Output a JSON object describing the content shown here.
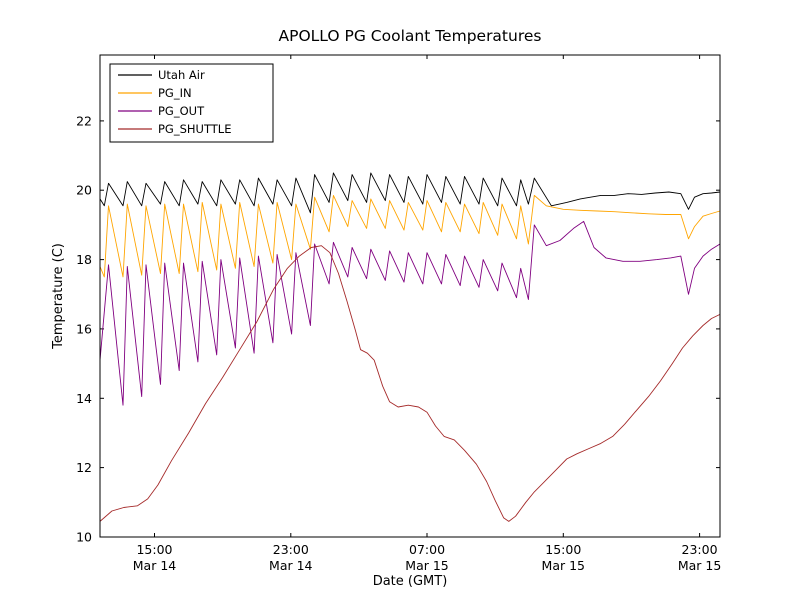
{
  "figure": {
    "background": "#ffffff"
  },
  "chart_data": {
    "type": "line",
    "title": "APOLLO PG Coolant Temperatures",
    "xlabel": "Date (GMT)",
    "ylabel": "Temperature (C)",
    "x_units": "hours since Mar 14 00:00 GMT",
    "xlim": [
      11.8,
      48.2
    ],
    "ylim": [
      10,
      23.9
    ],
    "grid": false,
    "y_ticks": [
      10,
      12,
      14,
      16,
      18,
      20,
      22
    ],
    "x_ticks": [
      {
        "x": 15,
        "time": "15:00",
        "date": "Mar 14"
      },
      {
        "x": 23,
        "time": "23:00",
        "date": "Mar 14"
      },
      {
        "x": 31,
        "time": "07:00",
        "date": "Mar 15"
      },
      {
        "x": 39,
        "time": "15:00",
        "date": "Mar 15"
      },
      {
        "x": 47,
        "time": "23:00",
        "date": "Mar 15"
      }
    ],
    "legend_position": "upper-left",
    "series": [
      {
        "name": "Utah Air",
        "color": "#000000",
        "points": [
          [
            11.8,
            19.75
          ],
          [
            12.05,
            19.55
          ],
          [
            12.3,
            20.2
          ],
          [
            13.15,
            19.55
          ],
          [
            13.4,
            20.25
          ],
          [
            14.25,
            19.55
          ],
          [
            14.5,
            20.2
          ],
          [
            15.35,
            19.6
          ],
          [
            15.6,
            20.25
          ],
          [
            16.45,
            19.55
          ],
          [
            16.7,
            20.3
          ],
          [
            17.55,
            19.6
          ],
          [
            17.8,
            20.25
          ],
          [
            18.65,
            19.55
          ],
          [
            18.9,
            20.3
          ],
          [
            19.75,
            19.6
          ],
          [
            20.0,
            20.3
          ],
          [
            20.85,
            19.55
          ],
          [
            21.1,
            20.35
          ],
          [
            21.95,
            19.6
          ],
          [
            22.2,
            20.3
          ],
          [
            23.05,
            19.55
          ],
          [
            23.3,
            20.35
          ],
          [
            24.15,
            19.35
          ],
          [
            24.4,
            20.45
          ],
          [
            25.25,
            19.65
          ],
          [
            25.5,
            20.5
          ],
          [
            26.35,
            19.7
          ],
          [
            26.6,
            20.45
          ],
          [
            27.45,
            19.65
          ],
          [
            27.7,
            20.5
          ],
          [
            28.55,
            19.7
          ],
          [
            28.8,
            20.45
          ],
          [
            29.65,
            19.65
          ],
          [
            29.9,
            20.4
          ],
          [
            30.75,
            19.6
          ],
          [
            31.0,
            20.45
          ],
          [
            31.85,
            19.65
          ],
          [
            32.1,
            20.4
          ],
          [
            32.95,
            19.6
          ],
          [
            33.2,
            20.4
          ],
          [
            34.05,
            19.6
          ],
          [
            34.3,
            20.35
          ],
          [
            35.15,
            19.55
          ],
          [
            35.4,
            20.35
          ],
          [
            36.25,
            19.55
          ],
          [
            36.5,
            20.3
          ],
          [
            36.95,
            19.6
          ],
          [
            37.3,
            20.35
          ],
          [
            38.3,
            19.55
          ],
          [
            39.2,
            19.65
          ],
          [
            40.0,
            19.75
          ],
          [
            40.6,
            19.8
          ],
          [
            41.2,
            19.85
          ],
          [
            42.0,
            19.85
          ],
          [
            42.8,
            19.9
          ],
          [
            43.6,
            19.88
          ],
          [
            44.4,
            19.92
          ],
          [
            45.2,
            19.95
          ],
          [
            45.9,
            19.9
          ],
          [
            46.35,
            19.45
          ],
          [
            46.7,
            19.8
          ],
          [
            47.2,
            19.9
          ],
          [
            47.7,
            19.92
          ],
          [
            48.2,
            19.95
          ]
        ]
      },
      {
        "name": "PG_IN",
        "color": "#ffa500",
        "points": [
          [
            11.8,
            17.8
          ],
          [
            12.05,
            17.5
          ],
          [
            12.3,
            19.55
          ],
          [
            13.15,
            17.5
          ],
          [
            13.4,
            19.6
          ],
          [
            14.25,
            17.55
          ],
          [
            14.5,
            19.55
          ],
          [
            15.35,
            17.6
          ],
          [
            15.6,
            19.6
          ],
          [
            16.45,
            17.6
          ],
          [
            16.7,
            19.6
          ],
          [
            17.55,
            17.65
          ],
          [
            17.8,
            19.65
          ],
          [
            18.65,
            17.7
          ],
          [
            18.9,
            19.6
          ],
          [
            19.75,
            17.75
          ],
          [
            20.0,
            19.65
          ],
          [
            20.85,
            17.8
          ],
          [
            21.1,
            19.6
          ],
          [
            21.95,
            17.9
          ],
          [
            22.2,
            19.65
          ],
          [
            23.05,
            18.0
          ],
          [
            23.3,
            19.6
          ],
          [
            24.15,
            18.3
          ],
          [
            24.4,
            19.8
          ],
          [
            25.25,
            18.8
          ],
          [
            25.5,
            19.85
          ],
          [
            26.35,
            18.95
          ],
          [
            26.6,
            19.7
          ],
          [
            27.45,
            18.9
          ],
          [
            27.7,
            19.75
          ],
          [
            28.55,
            18.9
          ],
          [
            28.8,
            19.7
          ],
          [
            29.65,
            18.85
          ],
          [
            29.9,
            19.65
          ],
          [
            30.75,
            18.85
          ],
          [
            31.0,
            19.7
          ],
          [
            31.85,
            18.8
          ],
          [
            32.1,
            19.65
          ],
          [
            32.95,
            18.8
          ],
          [
            33.2,
            19.6
          ],
          [
            34.05,
            18.75
          ],
          [
            34.3,
            19.65
          ],
          [
            35.15,
            18.7
          ],
          [
            35.4,
            19.6
          ],
          [
            36.25,
            18.6
          ],
          [
            36.5,
            19.55
          ],
          [
            36.95,
            18.45
          ],
          [
            37.3,
            19.85
          ],
          [
            38.0,
            19.55
          ],
          [
            39.0,
            19.45
          ],
          [
            40.0,
            19.42
          ],
          [
            41.0,
            19.4
          ],
          [
            42.0,
            19.38
          ],
          [
            43.0,
            19.35
          ],
          [
            44.0,
            19.32
          ],
          [
            45.0,
            19.3
          ],
          [
            45.9,
            19.3
          ],
          [
            46.35,
            18.6
          ],
          [
            46.7,
            18.95
          ],
          [
            47.2,
            19.25
          ],
          [
            47.7,
            19.33
          ],
          [
            48.2,
            19.4
          ]
        ]
      },
      {
        "name": "PG_OUT",
        "color": "#800080",
        "points": [
          [
            11.8,
            15.1
          ],
          [
            12.3,
            17.85
          ],
          [
            13.15,
            13.8
          ],
          [
            13.4,
            17.8
          ],
          [
            14.25,
            14.05
          ],
          [
            14.5,
            17.85
          ],
          [
            15.35,
            14.4
          ],
          [
            15.6,
            17.9
          ],
          [
            16.45,
            14.8
          ],
          [
            16.7,
            17.9
          ],
          [
            17.55,
            15.05
          ],
          [
            17.8,
            17.95
          ],
          [
            18.65,
            15.25
          ],
          [
            18.9,
            18.0
          ],
          [
            19.75,
            15.45
          ],
          [
            20.0,
            18.05
          ],
          [
            20.85,
            15.3
          ],
          [
            21.1,
            18.1
          ],
          [
            21.95,
            15.6
          ],
          [
            22.2,
            18.15
          ],
          [
            23.05,
            15.85
          ],
          [
            23.3,
            18.2
          ],
          [
            24.15,
            16.1
          ],
          [
            24.4,
            18.45
          ],
          [
            25.25,
            17.3
          ],
          [
            25.5,
            18.5
          ],
          [
            26.35,
            17.5
          ],
          [
            26.6,
            18.35
          ],
          [
            27.45,
            17.45
          ],
          [
            27.7,
            18.3
          ],
          [
            28.55,
            17.4
          ],
          [
            28.8,
            18.25
          ],
          [
            29.65,
            17.35
          ],
          [
            29.9,
            18.2
          ],
          [
            30.75,
            17.3
          ],
          [
            31.0,
            18.2
          ],
          [
            31.85,
            17.3
          ],
          [
            32.1,
            18.15
          ],
          [
            32.95,
            17.25
          ],
          [
            33.2,
            18.1
          ],
          [
            34.05,
            17.2
          ],
          [
            34.3,
            18.0
          ],
          [
            35.15,
            17.1
          ],
          [
            35.4,
            17.9
          ],
          [
            36.25,
            16.9
          ],
          [
            36.5,
            17.75
          ],
          [
            36.95,
            16.85
          ],
          [
            37.3,
            19.0
          ],
          [
            38.0,
            18.4
          ],
          [
            38.8,
            18.55
          ],
          [
            39.6,
            18.9
          ],
          [
            40.2,
            19.1
          ],
          [
            40.8,
            18.35
          ],
          [
            41.5,
            18.05
          ],
          [
            42.5,
            17.95
          ],
          [
            43.5,
            17.95
          ],
          [
            44.5,
            18.0
          ],
          [
            45.3,
            18.05
          ],
          [
            45.9,
            18.1
          ],
          [
            46.35,
            17.0
          ],
          [
            46.7,
            17.75
          ],
          [
            47.2,
            18.1
          ],
          [
            47.7,
            18.3
          ],
          [
            48.2,
            18.45
          ]
        ]
      },
      {
        "name": "PG_SHUTTLE",
        "color": "#a52a2a",
        "points": [
          [
            11.8,
            10.45
          ],
          [
            12.5,
            10.75
          ],
          [
            13.2,
            10.85
          ],
          [
            14.0,
            10.9
          ],
          [
            14.6,
            11.1
          ],
          [
            15.2,
            11.5
          ],
          [
            16.0,
            12.2
          ],
          [
            17.0,
            13.0
          ],
          [
            18.0,
            13.85
          ],
          [
            19.0,
            14.6
          ],
          [
            20.0,
            15.4
          ],
          [
            21.0,
            16.2
          ],
          [
            22.0,
            17.15
          ],
          [
            22.8,
            17.75
          ],
          [
            23.5,
            18.1
          ],
          [
            24.2,
            18.35
          ],
          [
            24.8,
            18.4
          ],
          [
            25.3,
            18.2
          ],
          [
            25.8,
            17.6
          ],
          [
            26.3,
            16.8
          ],
          [
            26.8,
            15.95
          ],
          [
            27.1,
            15.4
          ],
          [
            27.5,
            15.3
          ],
          [
            27.9,
            15.1
          ],
          [
            28.4,
            14.35
          ],
          [
            28.8,
            13.9
          ],
          [
            29.3,
            13.75
          ],
          [
            29.9,
            13.8
          ],
          [
            30.5,
            13.75
          ],
          [
            31.0,
            13.6
          ],
          [
            31.5,
            13.2
          ],
          [
            32.0,
            12.9
          ],
          [
            32.6,
            12.8
          ],
          [
            33.2,
            12.5
          ],
          [
            33.9,
            12.1
          ],
          [
            34.5,
            11.6
          ],
          [
            35.0,
            11.05
          ],
          [
            35.5,
            10.55
          ],
          [
            35.8,
            10.45
          ],
          [
            36.2,
            10.6
          ],
          [
            36.8,
            11.0
          ],
          [
            37.3,
            11.3
          ],
          [
            38.0,
            11.65
          ],
          [
            38.6,
            11.95
          ],
          [
            39.2,
            12.25
          ],
          [
            39.8,
            12.4
          ],
          [
            40.5,
            12.55
          ],
          [
            41.2,
            12.7
          ],
          [
            41.9,
            12.9
          ],
          [
            42.6,
            13.25
          ],
          [
            43.3,
            13.65
          ],
          [
            44.0,
            14.05
          ],
          [
            44.7,
            14.5
          ],
          [
            45.4,
            15.0
          ],
          [
            46.0,
            15.45
          ],
          [
            46.6,
            15.8
          ],
          [
            47.2,
            16.1
          ],
          [
            47.7,
            16.3
          ],
          [
            48.2,
            16.42
          ]
        ]
      }
    ]
  }
}
